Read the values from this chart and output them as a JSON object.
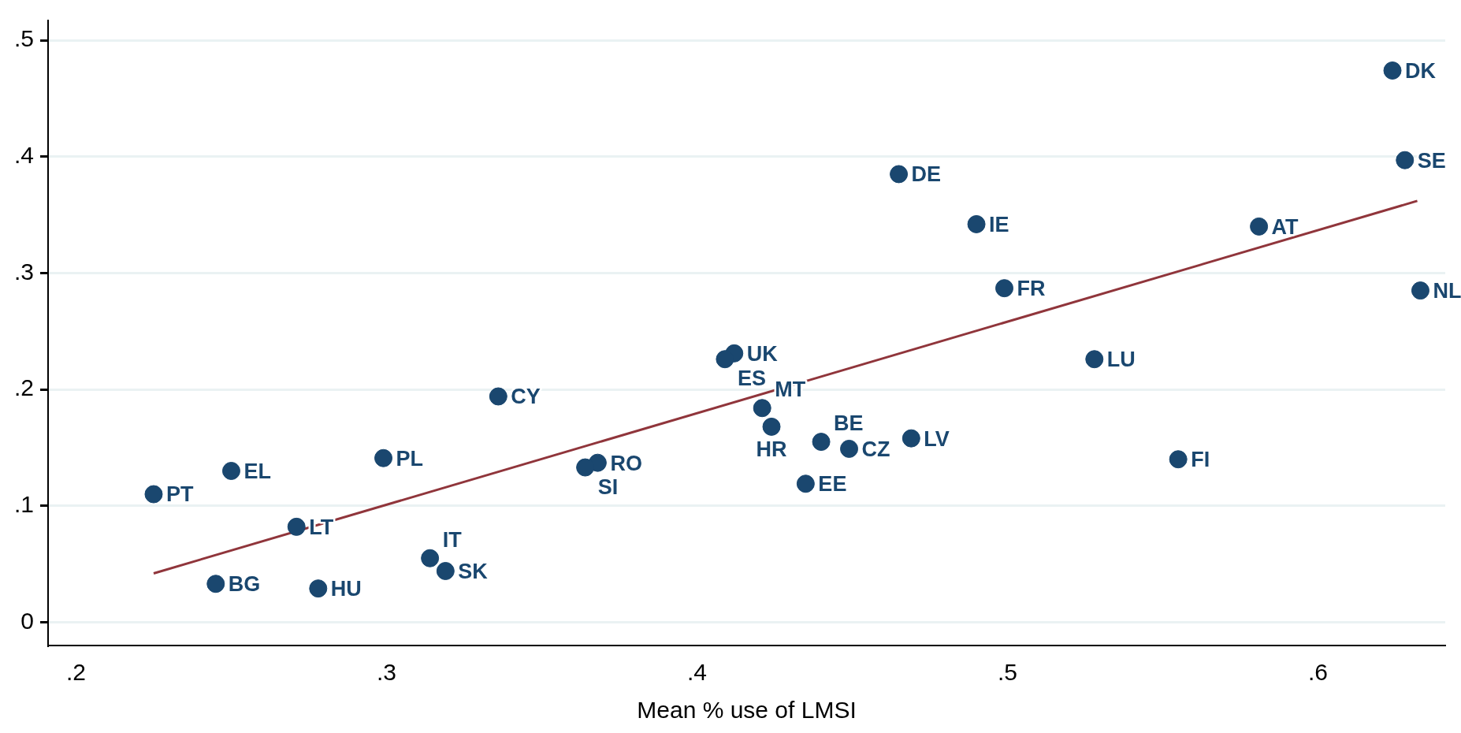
{
  "chart_data": {
    "type": "scatter",
    "xlabel": "Mean % use of LMSI",
    "grid": "y",
    "legend": false,
    "xlim": [
      0.191,
      0.641
    ],
    "ylim": [
      -0.02,
      0.517
    ],
    "xticks": [
      {
        "value": 0.2,
        "label": ".2"
      },
      {
        "value": 0.3,
        "label": ".3"
      },
      {
        "value": 0.4,
        "label": ".4"
      },
      {
        "value": 0.5,
        "label": ".5"
      },
      {
        "value": 0.6,
        "label": ".6"
      }
    ],
    "yticks": [
      {
        "value": 0,
        "label": "0"
      },
      {
        "value": 0.1,
        "label": ".1"
      },
      {
        "value": 0.2,
        "label": ".2"
      },
      {
        "value": 0.3,
        "label": ".3"
      },
      {
        "value": 0.4,
        "label": ".4"
      },
      {
        "value": 0.5,
        "label": ".5"
      }
    ],
    "series": [
      {
        "color": "#1a476f",
        "marker": "circle",
        "x": [
          0.624,
          0.628,
          0.465,
          0.49,
          0.581,
          0.499,
          0.633,
          0.412,
          0.409,
          0.528,
          0.336,
          0.421,
          0.424,
          0.44,
          0.449,
          0.469,
          0.555,
          0.299,
          0.25,
          0.225,
          0.368,
          0.364,
          0.435,
          0.271,
          0.314,
          0.319,
          0.245,
          0.278
        ],
        "values": [
          0.474,
          0.397,
          0.385,
          0.342,
          0.34,
          0.287,
          0.285,
          0.231,
          0.226,
          0.226,
          0.194,
          0.184,
          0.168,
          0.155,
          0.149,
          0.158,
          0.14,
          0.141,
          0.13,
          0.11,
          0.137,
          0.133,
          0.119,
          0.082,
          0.055,
          0.044,
          0.033,
          0.029
        ]
      },
      {
        "type": "line",
        "color": "#90353b",
        "x": [
          0.225,
          0.632
        ],
        "values": [
          0.042,
          0.362
        ]
      }
    ],
    "annotations": [
      {
        "text": "DK",
        "x": 0.624,
        "y": 0.474
      },
      {
        "text": "SE",
        "x": 0.628,
        "y": 0.397
      },
      {
        "text": "DE",
        "x": 0.465,
        "y": 0.385
      },
      {
        "text": "IE",
        "x": 0.49,
        "y": 0.342
      },
      {
        "text": "AT",
        "x": 0.581,
        "y": 0.34
      },
      {
        "text": "FR",
        "x": 0.499,
        "y": 0.287
      },
      {
        "text": "NL",
        "x": 0.633,
        "y": 0.285
      },
      {
        "text": "UK",
        "x": 0.412,
        "y": 0.231
      },
      {
        "text": "ES",
        "x": 0.409,
        "y": 0.226
      },
      {
        "text": "LU",
        "x": 0.528,
        "y": 0.226
      },
      {
        "text": "CY",
        "x": 0.336,
        "y": 0.194
      },
      {
        "text": "MT",
        "x": 0.421,
        "y": 0.184
      },
      {
        "text": "HR",
        "x": 0.424,
        "y": 0.168
      },
      {
        "text": "BE",
        "x": 0.44,
        "y": 0.155
      },
      {
        "text": "CZ",
        "x": 0.449,
        "y": 0.149
      },
      {
        "text": "LV",
        "x": 0.469,
        "y": 0.158
      },
      {
        "text": "FI",
        "x": 0.555,
        "y": 0.14
      },
      {
        "text": "PL",
        "x": 0.299,
        "y": 0.141
      },
      {
        "text": "EL",
        "x": 0.25,
        "y": 0.13
      },
      {
        "text": "PT",
        "x": 0.225,
        "y": 0.11
      },
      {
        "text": "RO",
        "x": 0.368,
        "y": 0.137
      },
      {
        "text": "SI",
        "x": 0.364,
        "y": 0.133
      },
      {
        "text": "EE",
        "x": 0.435,
        "y": 0.119
      },
      {
        "text": "LT",
        "x": 0.271,
        "y": 0.082
      },
      {
        "text": "IT",
        "x": 0.314,
        "y": 0.055
      },
      {
        "text": "SK",
        "x": 0.319,
        "y": 0.044
      },
      {
        "text": "BG",
        "x": 0.245,
        "y": 0.033
      },
      {
        "text": "HU",
        "x": 0.278,
        "y": 0.029
      }
    ]
  }
}
